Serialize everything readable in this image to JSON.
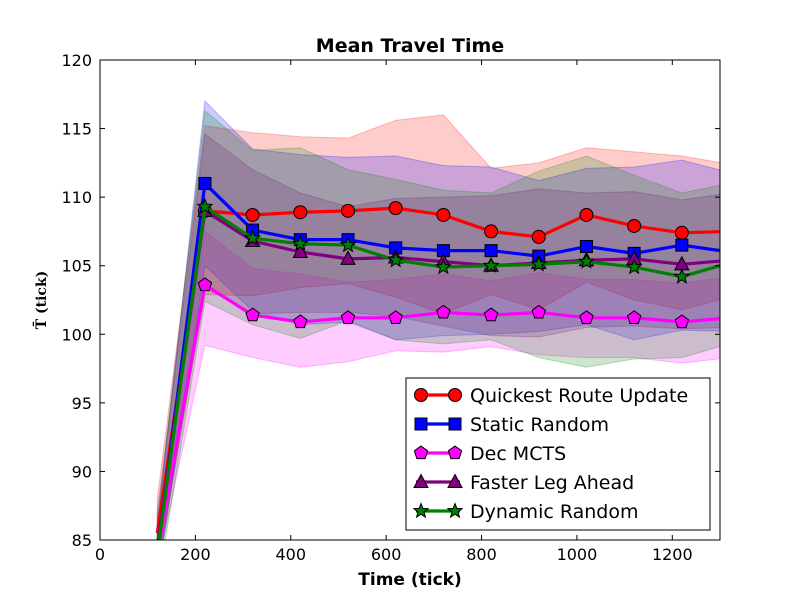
{
  "chart_data": {
    "type": "line",
    "title": "Mean Travel Time",
    "xlabel": "Time (tick)",
    "ylabel": "T̄   (tick)",
    "xlim": [
      0,
      1300
    ],
    "ylim": [
      85,
      120
    ],
    "xticks": [
      0,
      200,
      400,
      600,
      800,
      1000,
      1200
    ],
    "yticks": [
      85,
      90,
      95,
      100,
      105,
      110,
      115,
      120
    ],
    "grid": false,
    "legend_position": "lower-right",
    "x": [
      120,
      220,
      320,
      420,
      520,
      620,
      720,
      820,
      920,
      1020,
      1120,
      1220,
      1320
    ],
    "series": [
      {
        "name": "Quickest Route Update",
        "color": "#ff0000",
        "marker": "circle",
        "values": [
          85.5,
          109.0,
          108.7,
          108.9,
          109.0,
          109.2,
          108.7,
          107.5,
          107.1,
          108.7,
          107.9,
          107.4,
          107.5
        ],
        "band_upper": [
          88.0,
          115.2,
          114.7,
          114.4,
          114.3,
          115.6,
          116.0,
          112.1,
          112.5,
          113.6,
          113.3,
          113.0,
          112.4
        ],
        "band_lower": [
          83.0,
          102.9,
          102.8,
          103.4,
          103.7,
          102.7,
          101.5,
          102.9,
          101.8,
          103.8,
          102.5,
          101.8,
          102.7
        ]
      },
      {
        "name": "Static Random",
        "color": "#0000ff",
        "marker": "square",
        "values": [
          84.0,
          111.0,
          107.6,
          106.9,
          106.9,
          106.3,
          106.1,
          106.1,
          105.7,
          106.4,
          105.9,
          106.5,
          106.0
        ],
        "band_upper": [
          86.0,
          117.0,
          113.5,
          113.1,
          112.9,
          113.0,
          112.3,
          112.2,
          111.2,
          112.1,
          112.2,
          112.7,
          111.8
        ],
        "band_lower": [
          82.0,
          105.0,
          101.7,
          100.7,
          100.9,
          99.6,
          99.9,
          100.0,
          100.2,
          100.7,
          99.6,
          100.3,
          100.2
        ]
      },
      {
        "name": "Dec MCTS",
        "color": "#ff00ff",
        "marker": "pentagon",
        "values": [
          84.0,
          103.6,
          101.4,
          100.9,
          101.2,
          101.2,
          101.6,
          101.4,
          101.6,
          101.2,
          101.2,
          100.9,
          101.2
        ],
        "band_upper": [
          85.0,
          107.5,
          104.8,
          104.4,
          103.8,
          104.0,
          104.4,
          103.9,
          104.5,
          104.0,
          104.0,
          103.7,
          104.2
        ],
        "band_lower": [
          83.0,
          99.2,
          98.3,
          97.6,
          98.0,
          98.8,
          98.7,
          99.1,
          98.5,
          98.3,
          98.3,
          97.9,
          98.3
        ]
      },
      {
        "name": "Faster Leg Ahead",
        "color": "#800080",
        "marker": "triangle",
        "values": [
          84.5,
          109.0,
          106.8,
          106.0,
          105.5,
          105.6,
          105.3,
          105.0,
          105.2,
          105.4,
          105.5,
          105.1,
          105.4
        ],
        "band_upper": [
          87.0,
          114.6,
          112.0,
          110.3,
          109.3,
          109.9,
          110.0,
          110.1,
          110.6,
          110.3,
          110.4,
          109.8,
          110.3
        ],
        "band_lower": [
          82.5,
          103.4,
          101.5,
          101.6,
          101.6,
          101.3,
          100.6,
          99.9,
          99.8,
          100.5,
          100.6,
          100.4,
          100.5
        ]
      },
      {
        "name": "Dynamic Random",
        "color": "#008000",
        "marker": "star",
        "values": [
          84.0,
          109.3,
          107.0,
          106.6,
          106.5,
          105.4,
          104.9,
          105.0,
          105.1,
          105.3,
          104.9,
          104.2,
          105.2
        ],
        "band_upper": [
          86.5,
          116.3,
          113.4,
          113.6,
          112.0,
          111.3,
          110.5,
          110.3,
          111.9,
          113.0,
          111.6,
          110.3,
          111.0
        ],
        "band_lower": [
          81.5,
          102.4,
          100.7,
          99.7,
          101.0,
          99.6,
          99.3,
          99.6,
          98.3,
          97.6,
          98.2,
          98.3,
          99.3
        ]
      }
    ]
  }
}
